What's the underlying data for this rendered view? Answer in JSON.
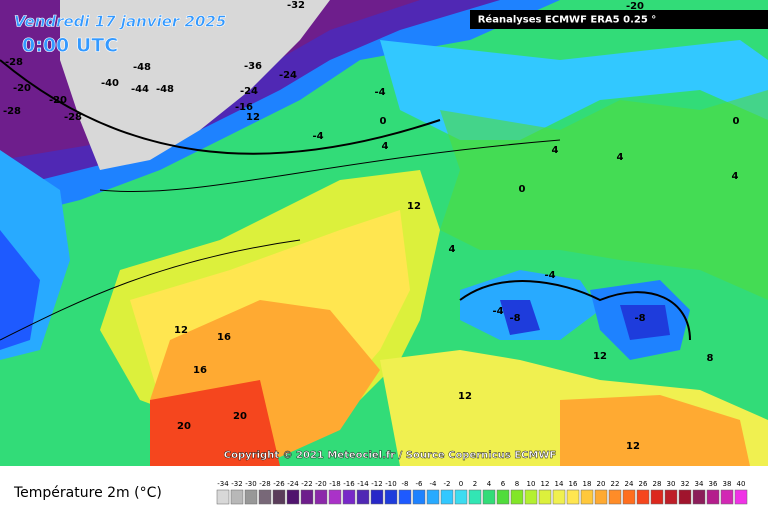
{
  "header": {
    "date": "Vendredi 17 janvier 2025",
    "time": "0:00 UTC",
    "source": "Réanalyses ECMWF ERA5 0.25 °"
  },
  "map": {
    "copyright": "Copyright © 2021 Meteociel.fr / Source Copernicus ECMWF",
    "labels": [
      "-32",
      "-20",
      "-28",
      "-20",
      "-20",
      "-28",
      "-28",
      "-48",
      "-40",
      "-44",
      "-48",
      "-36",
      "-24",
      "-24",
      "-16",
      "12",
      "-4",
      "0",
      "4",
      "-4",
      "4",
      "4",
      "0",
      "12",
      "4",
      "-4",
      "-4",
      "-8",
      "-8",
      "12",
      "16",
      "16",
      "20",
      "20",
      "12",
      "12",
      "4",
      "8",
      "0",
      "12"
    ]
  },
  "legend": {
    "title": "Température 2m (°C)",
    "scale": [
      -34,
      -32,
      -30,
      -28,
      -26,
      -24,
      -22,
      -20,
      -18,
      -16,
      -14,
      -12,
      -10,
      -8,
      -6,
      -4,
      -2,
      0,
      2,
      4,
      6,
      8,
      10,
      12,
      14,
      16,
      18,
      20,
      22,
      24,
      26,
      28,
      30,
      32,
      34,
      36,
      38,
      40
    ],
    "colors": [
      "#d8d8d8",
      "#b8b8b8",
      "#989898",
      "#786878",
      "#5a3c5a",
      "#50146e",
      "#6e1e8c",
      "#8c28aa",
      "#aa32c8",
      "#7828c8",
      "#5028b4",
      "#2828c8",
      "#1e3cdc",
      "#1e5aff",
      "#1e82ff",
      "#28aaff",
      "#32c8ff",
      "#3cdcf0",
      "#32e6b4",
      "#32dc78",
      "#50dc3c",
      "#82e628",
      "#b4f032",
      "#dcf03c",
      "#f0f050",
      "#ffe650",
      "#ffc83c",
      "#ffaa32",
      "#ff8c28",
      "#ff6e1e",
      "#f5461e",
      "#dc281e",
      "#be1e28",
      "#a0142d",
      "#8c1e5a",
      "#b41e8c",
      "#d228b4",
      "#f032e6"
    ]
  }
}
